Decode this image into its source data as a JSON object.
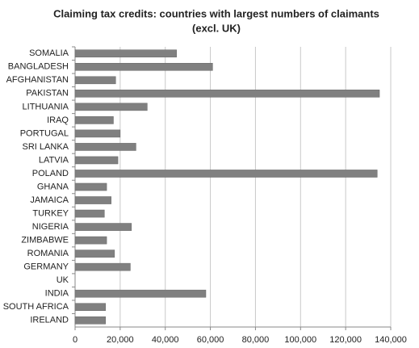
{
  "chart_data": {
    "type": "bar",
    "orientation": "horizontal",
    "title": [
      "Claiming tax credits: countries with largest numbers of claimants",
      "(excl. UK)"
    ],
    "categories": [
      "SOMALIA",
      "BANGLADESH",
      "AFGHANISTAN",
      "PAKISTAN",
      "LITHUANIA",
      "IRAQ",
      "PORTUGAL",
      "SRI LANKA",
      "LATVIA",
      "POLAND",
      "GHANA",
      "JAMAICA",
      "TURKEY",
      "NIGERIA",
      "ZIMBABWE",
      "ROMANIA",
      "GERMANY",
      "UK",
      "INDIA",
      "SOUTH AFRICA",
      "IRELAND"
    ],
    "values": [
      45000,
      61000,
      18000,
      135000,
      32000,
      17000,
      20000,
      27000,
      19000,
      134000,
      14000,
      16000,
      13000,
      25000,
      14000,
      17500,
      24500,
      null,
      58000,
      13500,
      13500
    ],
    "color": "#808080",
    "xlim": [
      0,
      140000
    ],
    "xticks": [
      0,
      {
        "value": 20000,
        "label": "20,000"
      },
      {
        "value": 40000,
        "label": "40,000"
      },
      {
        "value": 60000,
        "label": "60,000"
      },
      {
        "value": 80000,
        "label": "80,000"
      },
      {
        "value": 100000,
        "label": "100,000"
      },
      {
        "value": 120000,
        "label": "120,000"
      },
      {
        "value": 140000,
        "label": "140,000"
      }
    ],
    "grid": true
  }
}
